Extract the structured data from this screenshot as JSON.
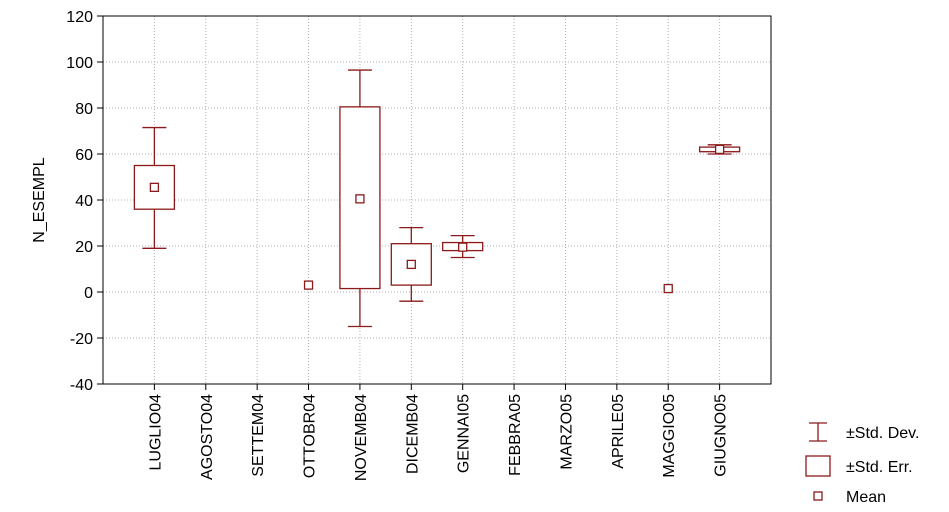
{
  "chart_data": {
    "type": "box",
    "ylabel": "N_ESEMPL",
    "ylim": [
      -40,
      120
    ],
    "yticks": [
      -40,
      -20,
      0,
      20,
      40,
      60,
      80,
      100,
      120
    ],
    "grid": true,
    "categories": [
      "LUGLIO04",
      "AGOSTO04",
      "SETTEM04",
      "OTTOBR04",
      "NOVEMB04",
      "DICEMB04",
      "GENNAI05",
      "FEBBRA05",
      "MARZO05",
      "APRILE05",
      "MAGGIO05",
      "GIUGNO05"
    ],
    "mean": [
      45.5,
      null,
      null,
      3,
      40.5,
      12,
      19.5,
      null,
      null,
      null,
      1.5,
      62
    ],
    "std_err_low": [
      36,
      null,
      null,
      null,
      1.5,
      3,
      18,
      null,
      null,
      null,
      null,
      61
    ],
    "std_err_high": [
      55,
      null,
      null,
      null,
      80.5,
      21,
      21.5,
      null,
      null,
      null,
      null,
      63
    ],
    "std_dev_low": [
      19,
      null,
      null,
      null,
      -15,
      -4,
      15,
      null,
      null,
      null,
      null,
      60
    ],
    "std_dev_high": [
      71.5,
      null,
      null,
      null,
      96.5,
      28,
      24.5,
      null,
      null,
      null,
      null,
      64
    ],
    "legend_position": "bottom-right",
    "legend": [
      {
        "symbol": "whisker",
        "label": "±Std. Dev."
      },
      {
        "symbol": "box",
        "label": "±Std. Err."
      },
      {
        "symbol": "marker",
        "label": "Mean"
      }
    ],
    "colors": {
      "series": "#8b1a1a",
      "grid": "#b0b0b0",
      "axis": "#000000"
    }
  }
}
